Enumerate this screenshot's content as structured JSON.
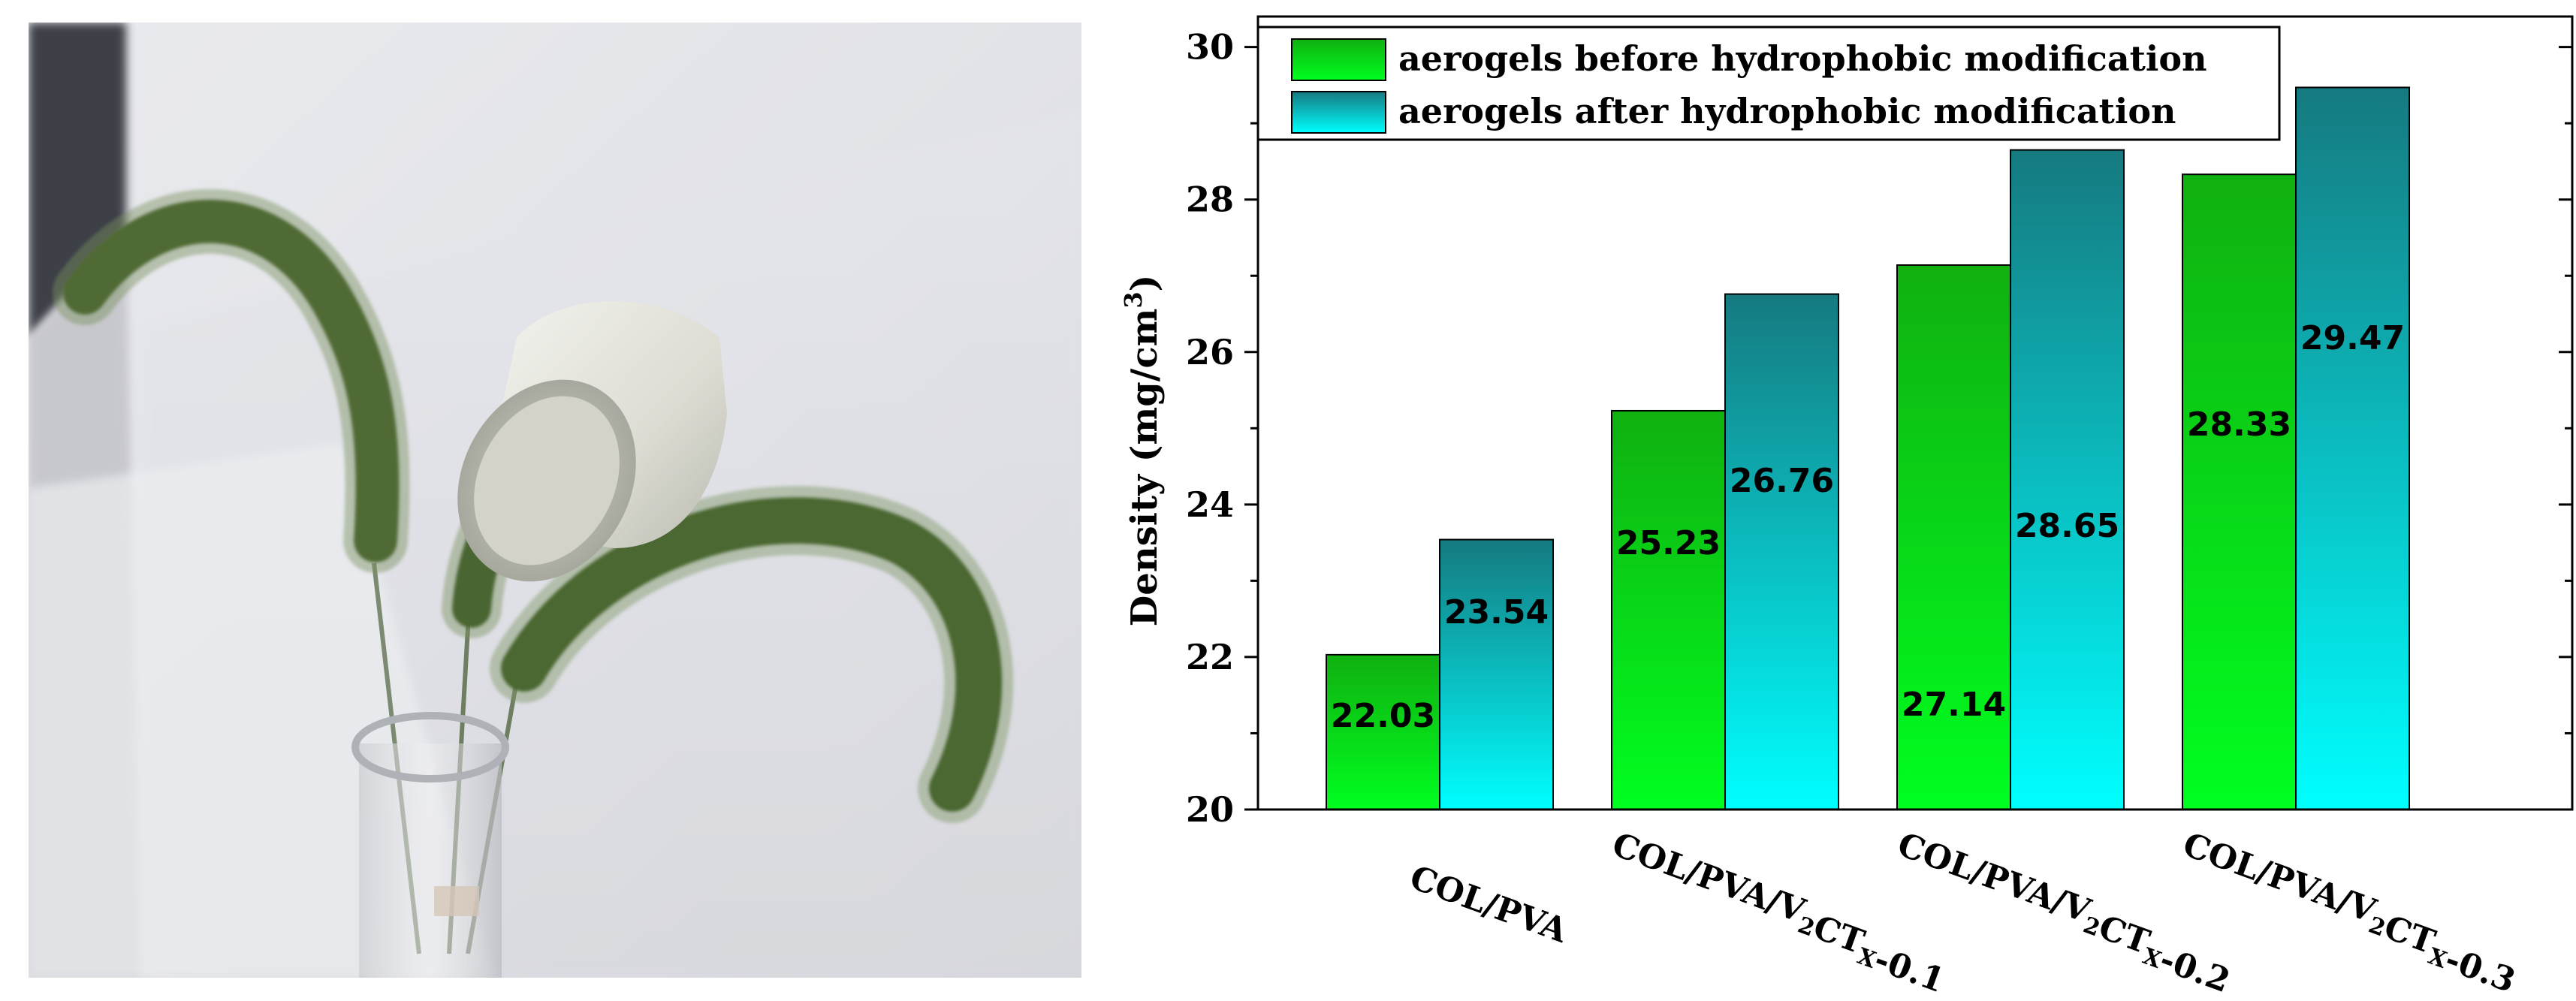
{
  "photo": {
    "subject": "white aerogel block resting on green foxtail grass spikes in a glass vial"
  },
  "chart_data": {
    "type": "bar",
    "categories": [
      "COL/PVA",
      "COL/PVA/V2CTX-0.1",
      "COL/PVA/V2CTX-0.2",
      "COL/PVA/V2CTX-0.3"
    ],
    "category_parts": [
      [
        {
          "t": "COL/PVA",
          "s": false
        }
      ],
      [
        {
          "t": "COL/PVA/V",
          "s": false
        },
        {
          "t": "2",
          "s": true
        },
        {
          "t": "CT",
          "s": false
        },
        {
          "t": "X",
          "s": true
        },
        {
          "t": "-0.1",
          "s": false
        }
      ],
      [
        {
          "t": "COL/PVA/V",
          "s": false
        },
        {
          "t": "2",
          "s": true
        },
        {
          "t": "CT",
          "s": false
        },
        {
          "t": "X",
          "s": true
        },
        {
          "t": "-0.2",
          "s": false
        }
      ],
      [
        {
          "t": "COL/PVA/V",
          "s": false
        },
        {
          "t": "2",
          "s": true
        },
        {
          "t": "CT",
          "s": false
        },
        {
          "t": "X",
          "s": true
        },
        {
          "t": "-0.3",
          "s": false
        }
      ]
    ],
    "series": [
      {
        "name": "aerogels before hydrophobic modification",
        "values": [
          22.03,
          25.23,
          27.14,
          28.33
        ],
        "color_top": "#10b010",
        "color_bottom": "#00ff20"
      },
      {
        "name": "aerogels after hydrophobic modification",
        "values": [
          23.54,
          26.76,
          28.65,
          29.47
        ],
        "color_top": "#157a80",
        "color_bottom": "#00ffff"
      }
    ],
    "data_labels": [
      [
        "22.03",
        "25.23",
        "27.14",
        "28.33"
      ],
      [
        "23.54",
        "26.76",
        "28.65",
        "29.47"
      ]
    ],
    "ylabel_main": "Density (mg/cm",
    "ylabel_sup": "3",
    "ylabel_close": ")",
    "xlabel": "",
    "title": "",
    "ylim": [
      20,
      30.4
    ],
    "yticks": [
      20,
      22,
      24,
      26,
      28,
      30
    ],
    "ytick_labels": [
      "20",
      "22",
      "24",
      "26",
      "28",
      "30"
    ],
    "legend_position": "top-left",
    "grid": false
  }
}
